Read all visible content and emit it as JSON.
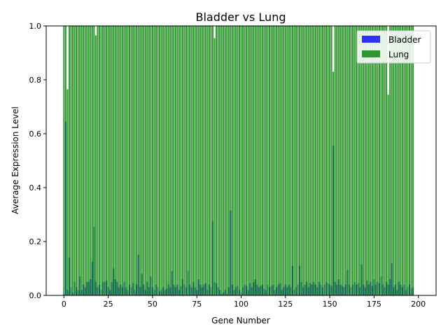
{
  "chart_data": {
    "type": "bar",
    "title": "Bladder vs Lung",
    "xlabel": "Gene Number",
    "ylabel": "Average Expression Level",
    "xlim": [
      -10,
      210
    ],
    "ylim": [
      0,
      1.0
    ],
    "x_ticks": [
      0,
      25,
      50,
      75,
      100,
      125,
      150,
      175,
      200
    ],
    "y_ticks": [
      0.0,
      0.2,
      0.4,
      0.6,
      0.8,
      1.0
    ],
    "legend": "top-right",
    "series": [
      {
        "name": "Bladder",
        "color": "#0000ff",
        "values": [
          0.005,
          0.645,
          0.02,
          0.14,
          0.03,
          0.01,
          0.05,
          0.03,
          0.02,
          0.07,
          0.02,
          0.04,
          0.03,
          0.05,
          0.05,
          0.06,
          0.125,
          0.255,
          0.05,
          0.03,
          0.04,
          0.02,
          0.05,
          0.05,
          0.055,
          0.03,
          0.02,
          0.05,
          0.1,
          0.06,
          0.05,
          0.03,
          0.04,
          0.03,
          0.05,
          0.03,
          0.02,
          0.04,
          0.03,
          0.045,
          0.02,
          0.04,
          0.15,
          0.03,
          0.08,
          0.04,
          0.02,
          0.05,
          0.03,
          0.07,
          0.03,
          0.02,
          0.04,
          0.03,
          0.015,
          0.02,
          0.03,
          0.02,
          0.025,
          0.04,
          0.03,
          0.09,
          0.04,
          0.03,
          0.04,
          0.02,
          0.035,
          0.06,
          0.04,
          0.03,
          0.09,
          0.04,
          0.03,
          0.05,
          0.03,
          0.02,
          0.06,
          0.04,
          0.03,
          0.04,
          0.045,
          0.02,
          0.04,
          0.03,
          0.275,
          0.05,
          0.045,
          0.03,
          0.02,
          0.005,
          0.01,
          0.02,
          0.005,
          0.03,
          0.315,
          0.04,
          0.02,
          0.03,
          0.035,
          0.02,
          0.01,
          0.03,
          0.04,
          0.035,
          0.02,
          0.045,
          0.03,
          0.05,
          0.06,
          0.04,
          0.03,
          0.035,
          0.04,
          0.025,
          0.02,
          0.04,
          0.03,
          0.035,
          0.04,
          0.02,
          0.03,
          0.04,
          0.045,
          0.02,
          0.03,
          0.04,
          0.03,
          0.04,
          0.03,
          0.11,
          0.02,
          0.03,
          0.04,
          0.11,
          0.05,
          0.03,
          0.04,
          0.05,
          0.03,
          0.045,
          0.04,
          0.05,
          0.04,
          0.03,
          0.05,
          0.04,
          0.03,
          0.04,
          0.05,
          0.045,
          0.04,
          0.035,
          0.555,
          0.05,
          0.04,
          0.06,
          0.04,
          0.035,
          0.03,
          0.04,
          0.095,
          0.04,
          0.03,
          0.04,
          0.05,
          0.04,
          0.045,
          0.03,
          0.115,
          0.04,
          0.03,
          0.055,
          0.04,
          0.05,
          0.035,
          0.06,
          0.04,
          0.05,
          0.045,
          0.07,
          0.04,
          0.03,
          0.05,
          0.04,
          0.06,
          0.12,
          0.03,
          0.04,
          0.02,
          0.05,
          0.04,
          0.03,
          0.04,
          0.02,
          0.03,
          0.04,
          0.025,
          0.03
        ]
      },
      {
        "name": "Lung",
        "color": "#008000",
        "values": [
          1.0,
          1.0,
          0.765,
          1.0,
          1.0,
          1.0,
          1.0,
          1.0,
          1.0,
          1.0,
          1.0,
          1.0,
          1.0,
          1.0,
          1.0,
          1.0,
          1.0,
          1.0,
          0.965,
          1.0,
          1.0,
          1.0,
          1.0,
          1.0,
          1.0,
          1.0,
          1.0,
          1.0,
          1.0,
          1.0,
          1.0,
          1.0,
          1.0,
          1.0,
          1.0,
          1.0,
          1.0,
          1.0,
          1.0,
          1.0,
          1.0,
          1.0,
          1.0,
          1.0,
          1.0,
          1.0,
          1.0,
          1.0,
          1.0,
          1.0,
          1.0,
          1.0,
          1.0,
          1.0,
          1.0,
          1.0,
          1.0,
          1.0,
          1.0,
          1.0,
          1.0,
          1.0,
          1.0,
          1.0,
          1.0,
          1.0,
          1.0,
          1.0,
          1.0,
          1.0,
          1.0,
          1.0,
          1.0,
          1.0,
          1.0,
          1.0,
          1.0,
          1.0,
          1.0,
          1.0,
          1.0,
          1.0,
          1.0,
          1.0,
          1.0,
          0.955,
          1.0,
          1.0,
          1.0,
          1.0,
          1.0,
          1.0,
          1.0,
          1.0,
          1.0,
          1.0,
          1.0,
          1.0,
          1.0,
          1.0,
          1.0,
          1.0,
          1.0,
          1.0,
          1.0,
          1.0,
          1.0,
          1.0,
          1.0,
          1.0,
          1.0,
          1.0,
          1.0,
          1.0,
          1.0,
          1.0,
          1.0,
          1.0,
          1.0,
          1.0,
          1.0,
          1.0,
          1.0,
          1.0,
          1.0,
          1.0,
          1.0,
          1.0,
          1.0,
          1.0,
          1.0,
          1.0,
          1.0,
          1.0,
          1.0,
          1.0,
          1.0,
          1.0,
          1.0,
          1.0,
          1.0,
          1.0,
          1.0,
          1.0,
          1.0,
          1.0,
          1.0,
          1.0,
          1.0,
          1.0,
          1.0,
          1.0,
          0.83,
          1.0,
          1.0,
          1.0,
          1.0,
          1.0,
          1.0,
          1.0,
          1.0,
          1.0,
          1.0,
          1.0,
          1.0,
          1.0,
          1.0,
          1.0,
          1.0,
          1.0,
          1.0,
          1.0,
          1.0,
          1.0,
          1.0,
          1.0,
          1.0,
          1.0,
          1.0,
          1.0,
          1.0,
          1.0,
          1.0,
          0.745,
          1.0,
          1.0,
          1.0,
          1.0,
          1.0,
          1.0,
          1.0,
          1.0,
          1.0,
          1.0,
          1.0,
          1.0,
          1.0,
          1.0
        ]
      }
    ]
  }
}
